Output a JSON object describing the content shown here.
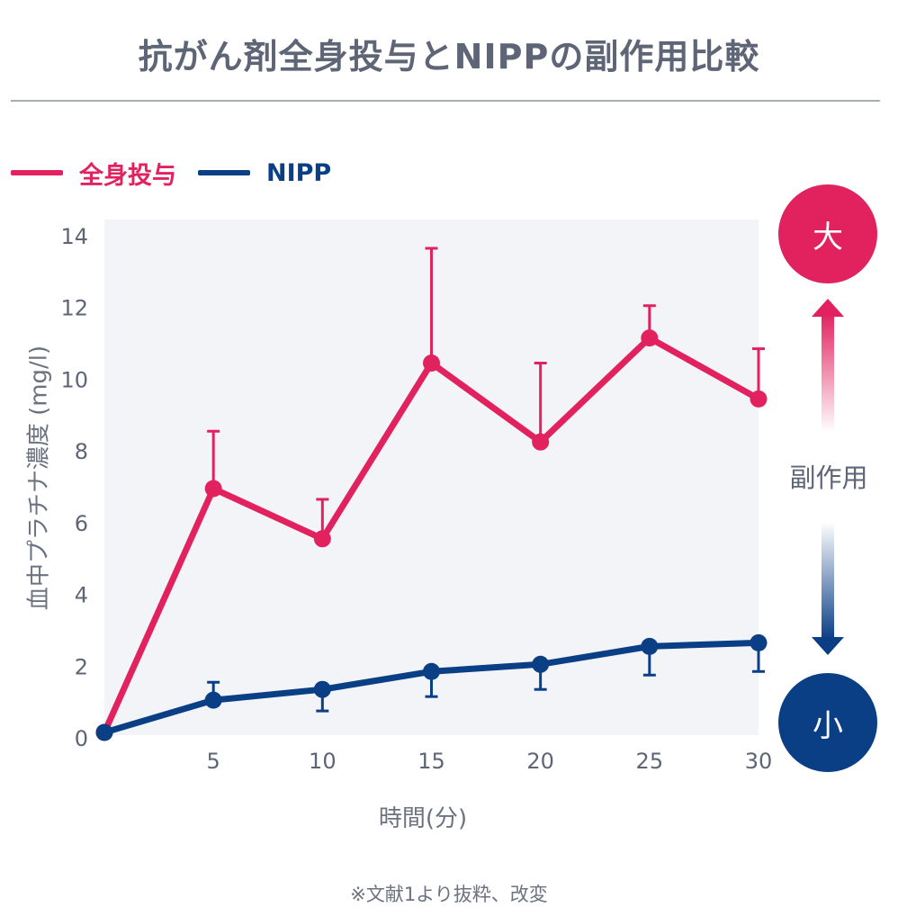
{
  "title": "抗がん剤全身投与とNIPPの副作用比較",
  "legend": [
    {
      "label": "全身投与",
      "color": "#e2215f"
    },
    {
      "label": "NIPP",
      "color": "#0a3f86"
    }
  ],
  "scale": {
    "top_label": "大",
    "bottom_label": "小",
    "middle_label": "副作用",
    "top_color": "#e2215f",
    "bottom_color": "#0a3f86"
  },
  "footnote": "※文献1より抜粋、改変",
  "chart_data": {
    "type": "line",
    "xlabel": "時間(分)",
    "ylabel": "血中プラチナ濃度 (mg/l)",
    "xlim": [
      0,
      30
    ],
    "ylim": [
      0,
      14
    ],
    "xticks": [
      5,
      10,
      15,
      20,
      25,
      30
    ],
    "yticks": [
      0,
      2,
      4,
      6,
      8,
      10,
      12,
      14
    ],
    "grid": false,
    "legend_position": "top-left",
    "series": [
      {
        "name": "全身投与",
        "color": "#e2215f",
        "x": [
          0,
          5,
          10,
          15,
          20,
          25,
          30
        ],
        "y": [
          0.2,
          7.0,
          5.6,
          10.5,
          8.3,
          11.2,
          9.5
        ],
        "error_upper": [
          null,
          8.6,
          6.7,
          13.7,
          10.5,
          12.1,
          10.9
        ],
        "error_lower": [
          null,
          null,
          null,
          null,
          null,
          null,
          null
        ]
      },
      {
        "name": "NIPP",
        "color": "#0a3f86",
        "x": [
          0,
          5,
          10,
          15,
          20,
          25,
          30
        ],
        "y": [
          0.2,
          1.1,
          1.4,
          1.9,
          2.1,
          2.6,
          2.7
        ],
        "error_upper": [
          null,
          1.6,
          1.5,
          2.0,
          2.2,
          2.7,
          2.8
        ],
        "error_lower": [
          null,
          1.1,
          0.8,
          1.2,
          1.4,
          1.8,
          1.9
        ]
      }
    ]
  }
}
